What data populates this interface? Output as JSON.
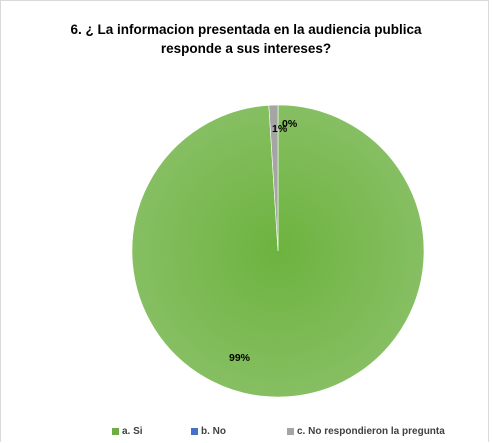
{
  "chart_data": {
    "type": "pie",
    "title": "6. ¿ La informacion presentada en la audiencia publica responde a sus intereses?",
    "categories": [
      "a. Si",
      "b. No",
      "c. No respondieron la pregunta"
    ],
    "values": [
      99,
      0,
      1
    ],
    "data_labels": [
      "99%",
      "0%",
      "1%"
    ],
    "colors": [
      "#70ad47",
      "#4472c4",
      "#a5a5a5"
    ],
    "legend_position": "bottom"
  }
}
